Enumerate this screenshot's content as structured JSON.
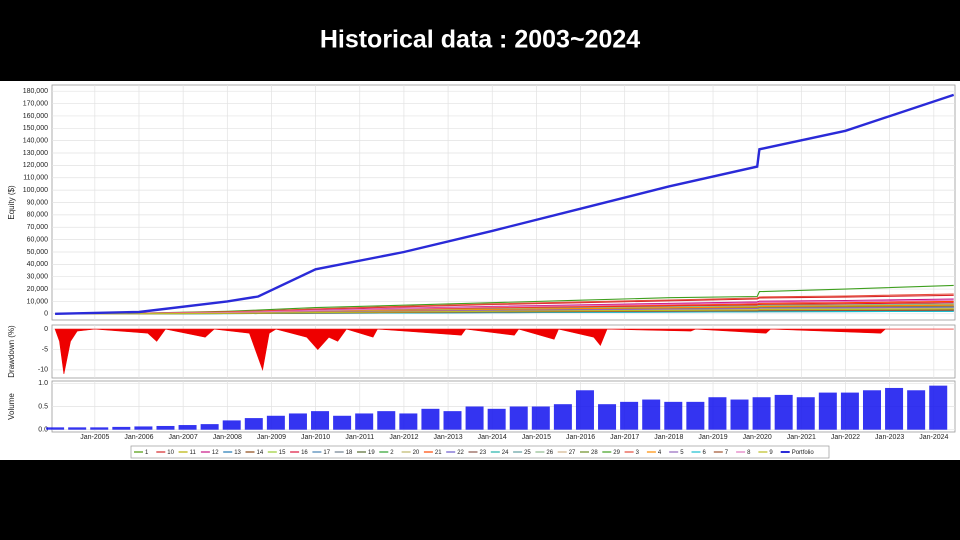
{
  "header": {
    "title": "Historical data : 2003~2024"
  },
  "chart_data": [
    {
      "type": "line",
      "y_label": "Equity ($)",
      "x": [
        2004.1,
        2006,
        2008,
        2008.7,
        2010,
        2012,
        2014,
        2016,
        2018,
        2020,
        2020.05,
        2022,
        2024.45
      ],
      "xlim": [
        2004.03,
        2024.48
      ],
      "ylim": [
        -5000,
        185000
      ],
      "grid": true,
      "yticks": [
        0,
        {
          "value": 10000,
          "label": "10,000"
        },
        {
          "value": 20000,
          "label": "20,000"
        },
        {
          "value": 30000,
          "label": "30,000"
        },
        {
          "value": 40000,
          "label": "40,000"
        },
        {
          "value": 50000,
          "label": "50,000"
        },
        {
          "value": 60000,
          "label": "60,000"
        },
        {
          "value": 70000,
          "label": "70,000"
        },
        {
          "value": 80000,
          "label": "80,000"
        },
        {
          "value": 90000,
          "label": "90,000"
        },
        {
          "value": 100000,
          "label": "100,000"
        },
        {
          "value": 110000,
          "label": "110,000"
        },
        {
          "value": 120000,
          "label": "120,000"
        },
        {
          "value": 130000,
          "label": "130,000"
        },
        {
          "value": 140000,
          "label": "140,000"
        },
        {
          "value": 150000,
          "label": "150,000"
        },
        {
          "value": 160000,
          "label": "160,000"
        },
        {
          "value": 170000,
          "label": "170,000"
        },
        {
          "value": 180000,
          "label": "180,000"
        }
      ],
      "series": [
        {
          "name": "1",
          "color": "#4e9a06",
          "values": [
            0,
            240,
            800,
            1120,
            2000,
            3040,
            4000,
            4800,
            5600,
            6400,
            6800,
            7200,
            8000
          ]
        },
        {
          "name": "10",
          "color": "#d62728",
          "values": [
            0,
            450,
            1500,
            2100,
            3750,
            5700,
            7500,
            9000,
            10500,
            12000,
            12750,
            13500,
            15000
          ]
        },
        {
          "name": "11",
          "color": "#b8b000",
          "values": [
            0,
            150,
            500,
            700,
            1250,
            1900,
            2500,
            3000,
            3500,
            4000,
            4250,
            4500,
            5000
          ]
        },
        {
          "name": "12",
          "color": "#c71585",
          "values": [
            0,
            360,
            1200,
            1680,
            3000,
            4560,
            6000,
            7200,
            8400,
            9600,
            10200,
            10800,
            12000
          ]
        },
        {
          "name": "13",
          "color": "#1f77b4",
          "values": [
            0,
            90,
            300,
            420,
            750,
            1140,
            1500,
            1800,
            2100,
            2400,
            2550,
            2700,
            3000
          ]
        },
        {
          "name": "14",
          "color": "#8b4513",
          "values": [
            0,
            180,
            600,
            840,
            1500,
            2280,
            3000,
            3600,
            4200,
            4800,
            5100,
            5400,
            6000
          ]
        },
        {
          "name": "15",
          "color": "#9acd32",
          "values": [
            0,
            120,
            400,
            560,
            1000,
            1520,
            2000,
            2400,
            2800,
            3200,
            3400,
            3600,
            4000
          ]
        },
        {
          "name": "16",
          "color": "#dc143c",
          "values": [
            0,
            270,
            900,
            1260,
            2250,
            3420,
            4500,
            5400,
            6300,
            7200,
            7650,
            8100,
            9000
          ]
        },
        {
          "name": "17",
          "color": "#4682b4",
          "values": [
            0,
            60,
            200,
            280,
            500,
            760,
            1000,
            1200,
            1400,
            1600,
            1700,
            1800,
            2000
          ]
        },
        {
          "name": "18",
          "color": "#708090",
          "values": [
            0,
            150,
            500,
            700,
            1250,
            1900,
            2500,
            3000,
            3500,
            4000,
            4250,
            4500,
            5000
          ]
        },
        {
          "name": "19",
          "color": "#556b2f",
          "values": [
            0,
            210,
            700,
            980,
            1750,
            2660,
            3500,
            4200,
            4900,
            5600,
            5950,
            6300,
            7000
          ]
        },
        {
          "name": "2",
          "color": "#2ca02c",
          "values": [
            0,
            90,
            300,
            420,
            750,
            1140,
            1500,
            1800,
            2100,
            2400,
            2550,
            2700,
            3000
          ]
        },
        {
          "name": "20",
          "color": "#bdb76b",
          "values": [
            0,
            120,
            400,
            560,
            1000,
            1520,
            2000,
            2400,
            2800,
            3200,
            3400,
            3600,
            4000
          ]
        },
        {
          "name": "21",
          "color": "#ff4500",
          "values": [
            0,
            300,
            1000,
            1400,
            2500,
            3800,
            5000,
            6000,
            7000,
            8000,
            8500,
            9000,
            10000
          ]
        },
        {
          "name": "22",
          "color": "#6a5acd",
          "values": [
            0,
            180,
            600,
            840,
            1500,
            2280,
            3000,
            3600,
            4200,
            4800,
            5100,
            5400,
            6000
          ]
        },
        {
          "name": "23",
          "color": "#8c564b",
          "values": [
            0,
            75,
            250,
            350,
            625,
            950,
            1250,
            1500,
            1750,
            2000,
            2125,
            2250,
            2500
          ]
        },
        {
          "name": "24",
          "color": "#20b2aa",
          "values": [
            0,
            150,
            500,
            700,
            1250,
            1900,
            2500,
            3000,
            3500,
            4000,
            4250,
            4500,
            5000
          ]
        },
        {
          "name": "25",
          "color": "#5f9ea0",
          "values": [
            0,
            105,
            350,
            490,
            875,
            1330,
            1750,
            2100,
            2450,
            2800,
            2975,
            3150,
            3500
          ]
        },
        {
          "name": "26",
          "color": "#8fbc8f",
          "values": [
            0,
            240,
            800,
            1120,
            2000,
            3040,
            4000,
            4800,
            5600,
            6400,
            6800,
            7200,
            8000
          ]
        },
        {
          "name": "27",
          "color": "#d2b48c",
          "values": [
            0,
            135,
            450,
            630,
            1125,
            1710,
            2250,
            2700,
            3150,
            3600,
            3825,
            4050,
            4500
          ]
        },
        {
          "name": "28",
          "color": "#6b8e23",
          "values": [
            0,
            180,
            600,
            840,
            1500,
            2280,
            3000,
            3600,
            4200,
            4800,
            5100,
            5400,
            6000
          ]
        },
        {
          "name": "29",
          "color": "#3f9f1f",
          "values": [
            0,
            500,
            2000,
            3000,
            5000,
            7000,
            9000,
            11000,
            13000,
            14000,
            18000,
            20000,
            23000
          ]
        },
        {
          "name": "3",
          "color": "#e74c3c",
          "values": [
            0,
            480,
            1600,
            2240,
            4000,
            6080,
            8000,
            9600,
            11200,
            12800,
            13600,
            14400,
            16000
          ]
        },
        {
          "name": "4",
          "color": "#ff8c00",
          "values": [
            0,
            210,
            700,
            980,
            1750,
            2660,
            3500,
            4200,
            4900,
            5600,
            5950,
            6300,
            7000
          ]
        },
        {
          "name": "5",
          "color": "#9467bd",
          "values": [
            0,
            165,
            550,
            770,
            1375,
            2090,
            2750,
            3300,
            3850,
            4400,
            4675,
            4950,
            5500
          ]
        },
        {
          "name": "6",
          "color": "#17becf",
          "values": [
            0,
            60,
            200,
            280,
            500,
            760,
            1000,
            1200,
            1400,
            1600,
            1700,
            1800,
            2000
          ]
        },
        {
          "name": "7",
          "color": "#a0522d",
          "values": [
            0,
            90,
            300,
            420,
            750,
            1140,
            1500,
            1800,
            2100,
            2400,
            2550,
            2700,
            3000
          ]
        },
        {
          "name": "8",
          "color": "#e377c2",
          "values": [
            0,
            330,
            1100,
            1540,
            2750,
            4180,
            5500,
            6600,
            7700,
            8800,
            9350,
            9900,
            11000
          ]
        },
        {
          "name": "9",
          "color": "#bcbd22",
          "values": [
            0,
            120,
            400,
            560,
            1000,
            1520,
            2000,
            2400,
            2800,
            3200,
            3400,
            3600,
            4000
          ]
        },
        {
          "name": "Portfolio",
          "color": "#2a2ad8",
          "values": [
            0,
            1500,
            10000,
            14000,
            36000,
            50000,
            67000,
            85000,
            103000,
            119000,
            133000,
            148000,
            177000
          ]
        }
      ]
    },
    {
      "type": "area",
      "y_label": "Drawdown (%)",
      "color": "#ee0000",
      "x": [
        2004.1,
        2004.2,
        2004.3,
        2004.45,
        2004.6,
        2005,
        2006.2,
        2006.4,
        2006.6,
        2007.5,
        2007.7,
        2008.5,
        2008.8,
        2008.95,
        2009.1,
        2009.8,
        2010.05,
        2010.3,
        2010.5,
        2010.7,
        2011.3,
        2011.4,
        2013.3,
        2013.4,
        2014.5,
        2014.6,
        2015.4,
        2015.5,
        2016.3,
        2016.45,
        2016.6,
        2018.5,
        2018.6,
        2020.2,
        2020.3,
        2022.8,
        2022.9,
        2024.45
      ],
      "values": [
        0,
        -3,
        -11,
        -3,
        -0.5,
        0,
        -1,
        -3,
        0,
        -2,
        0,
        -1,
        -10,
        -1,
        0,
        -2,
        -5,
        -2,
        -3,
        0,
        -2,
        0,
        -1.5,
        0,
        -1.5,
        0,
        -2.5,
        0,
        -2,
        -4,
        0,
        -0.5,
        0,
        -1,
        0,
        -1,
        0,
        0
      ],
      "xlim": [
        2004.03,
        2024.48
      ],
      "ylim": [
        -12,
        1
      ],
      "yticks": [
        0,
        -5,
        -10
      ],
      "grid": true
    },
    {
      "type": "bar",
      "y_label": "Volume",
      "color": "#1010ee",
      "x": [
        2004.1,
        2004.6,
        2005.1,
        2005.6,
        2006.1,
        2006.6,
        2007.1,
        2007.6,
        2008.1,
        2008.6,
        2009.1,
        2009.6,
        2010.1,
        2010.6,
        2011.1,
        2011.6,
        2012.1,
        2012.6,
        2013.1,
        2013.6,
        2014.1,
        2014.6,
        2015.1,
        2015.6,
        2016.1,
        2016.6,
        2017.1,
        2017.6,
        2018.1,
        2018.6,
        2019.1,
        2019.6,
        2020.1,
        2020.6,
        2021.1,
        2021.6,
        2022.1,
        2022.6,
        2023.1,
        2023.6,
        2024.1
      ],
      "values": [
        0.05,
        0.05,
        0.05,
        0.06,
        0.07,
        0.08,
        0.1,
        0.12,
        0.2,
        0.25,
        0.3,
        0.35,
        0.4,
        0.3,
        0.35,
        0.4,
        0.35,
        0.45,
        0.4,
        0.5,
        0.45,
        0.5,
        0.5,
        0.55,
        0.85,
        0.55,
        0.6,
        0.65,
        0.6,
        0.6,
        0.7,
        0.65,
        0.7,
        0.75,
        0.7,
        0.8,
        0.8,
        0.85,
        0.9,
        0.85,
        0.95
      ],
      "xlim": [
        2004.03,
        2024.48
      ],
      "ylim": [
        -0.05,
        1.05
      ],
      "grid": true,
      "yticks": [
        {
          "value": 0,
          "label": "0.0"
        },
        {
          "value": 0.5,
          "label": "0.5"
        },
        {
          "value": 1,
          "label": "1.0"
        }
      ],
      "xticks": [
        {
          "value": 2005,
          "label": "Jan-2005"
        },
        {
          "value": 2006,
          "label": "Jan-2006"
        },
        {
          "value": 2007,
          "label": "Jan-2007"
        },
        {
          "value": 2008,
          "label": "Jan-2008"
        },
        {
          "value": 2009,
          "label": "Jan-2009"
        },
        {
          "value": 2010,
          "label": "Jan-2010"
        },
        {
          "value": 2011,
          "label": "Jan-2011"
        },
        {
          "value": 2012,
          "label": "Jan-2012"
        },
        {
          "value": 2013,
          "label": "Jan-2013"
        },
        {
          "value": 2014,
          "label": "Jan-2014"
        },
        {
          "value": 2015,
          "label": "Jan-2015"
        },
        {
          "value": 2016,
          "label": "Jan-2016"
        },
        {
          "value": 2017,
          "label": "Jan-2017"
        },
        {
          "value": 2018,
          "label": "Jan-2018"
        },
        {
          "value": 2019,
          "label": "Jan-2019"
        },
        {
          "value": 2020,
          "label": "Jan-2020"
        },
        {
          "value": 2021,
          "label": "Jan-2021"
        },
        {
          "value": 2022,
          "label": "Jan-2022"
        },
        {
          "value": 2023,
          "label": "Jan-2023"
        },
        {
          "value": 2024,
          "label": "Jan-2024"
        }
      ]
    }
  ]
}
